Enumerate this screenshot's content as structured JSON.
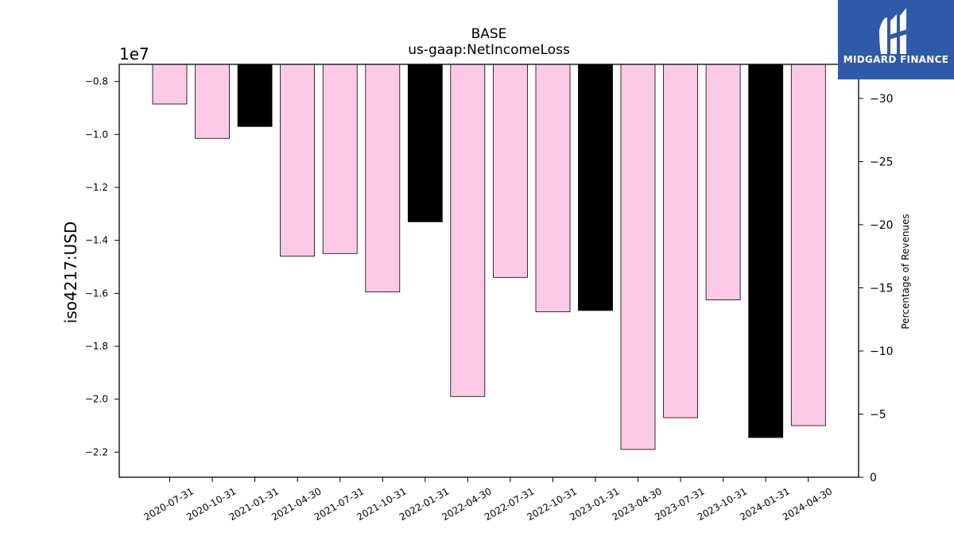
{
  "brand": {
    "name": "MIDGARD FINANCE",
    "mark_icon": "midgard-logo-icon",
    "background": "#2f5aa8"
  },
  "chart_data": {
    "type": "bar",
    "title": "BASE",
    "subtitle": "us-gaap:NetIncomeLoss",
    "ylabel": "iso4217:USD",
    "ylabel_right": "Percentage of Revenues",
    "y_offset_label": "1e7",
    "ylim": [
      -2.295,
      -0.735
    ],
    "yticks": [
      -0.8,
      -1.0,
      -1.2,
      -1.4,
      -1.6,
      -1.8,
      -2.0,
      -2.2
    ],
    "yticks_right": [
      -30,
      -25,
      -20,
      -15,
      -10,
      -5,
      0
    ],
    "ylim_right": [
      -32.7,
      0
    ],
    "categories": [
      "2020-07-31",
      "2020-10-31",
      "2021-01-31",
      "2021-04-30",
      "2021-07-31",
      "2021-10-31",
      "2022-01-31",
      "2022-04-30",
      "2022-07-31",
      "2022-10-31",
      "2023-01-31",
      "2023-04-30",
      "2023-07-31",
      "2023-10-31",
      "2024-01-31",
      "2024-04-30"
    ],
    "values": [
      -0.885,
      -1.015,
      -0.97,
      -1.46,
      -1.45,
      -1.595,
      -1.33,
      -1.99,
      -1.54,
      -1.67,
      -1.665,
      -2.19,
      -2.07,
      -1.625,
      -2.145,
      -2.1
    ],
    "bar_colors": [
      "#fdcae6",
      "#fdcae6",
      "#000000",
      "#fdcae6",
      "#fdcae6",
      "#fdcae6",
      "#000000",
      "#fdcae6",
      "#fdcae6",
      "#fdcae6",
      "#000000",
      "#fdcae6",
      "#fdcae6",
      "#fdcae6",
      "#000000",
      "#fdcae6"
    ],
    "grid": false,
    "legend": "none"
  }
}
